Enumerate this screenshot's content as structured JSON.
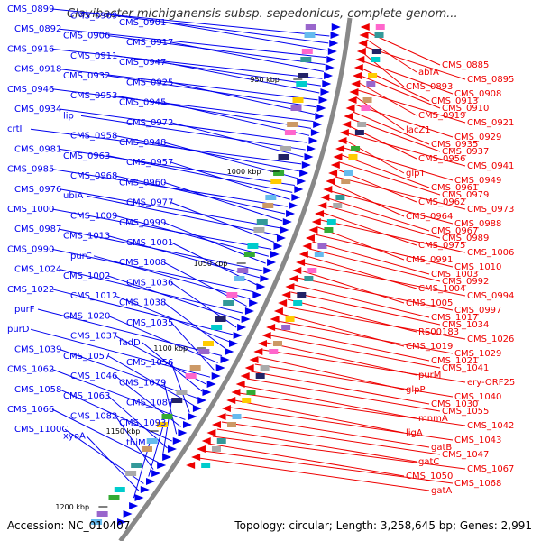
{
  "title": "Clavibacter michiganensis subsp. sepedonicus, complete genom...",
  "footer": {
    "accession": "Accession: NC_010407",
    "summary": "Topology: circular; Length: 3,258,645 bp; Genes: 2,991"
  },
  "colors": {
    "left_strand": "#0000ee",
    "right_strand": "#ee0000",
    "backbone": "#888888"
  },
  "ticks": [
    "950 kbp",
    "1000 kbp",
    "1050 kbp",
    "1100 kbp",
    "1150 kbp",
    "1200 kbp"
  ],
  "left_labels": [
    "CMS_0899",
    "CMS_0909",
    "CMS_0901",
    "CMS_0892",
    "CMS_0906",
    "CMS_0917",
    "CMS_0916",
    "CMS_0911",
    "CMS_0947",
    "CMS_0918",
    "CMS_0932",
    "CMS_0925",
    "CMS_0946",
    "CMS_0953",
    "CMS_0945",
    "CMS_0934",
    "lip",
    "CMS_0972",
    "crtI",
    "CMS_0958",
    "CMS_0948",
    "CMS_0981",
    "CMS_0963",
    "CMS_0957",
    "CMS_0985",
    "CMS_0968",
    "CMS_0960",
    "CMS_0976",
    "ubiA",
    "CMS_0977",
    "CMS_1000",
    "CMS_1009",
    "CMS_0999",
    "CMS_0987",
    "CMS_1013",
    "CMS_1001",
    "CMS_0990",
    "purC",
    "CMS_1008",
    "CMS_1024",
    "CMS_1002",
    "CMS_1036",
    "CMS_1022",
    "CMS_1012",
    "CMS_1038",
    "purF",
    "CMS_1020",
    "CMS_1035",
    "purD",
    "CMS_1037",
    "fadD",
    "CMS_1039",
    "CMS_1057",
    "CMS_1056",
    "CMS_1062",
    "CMS_1046",
    "CMS_1079",
    "CMS_1058",
    "CMS_1063",
    "CMS_1087",
    "CMS_1066",
    "CMS_1082",
    "CMS_1093",
    "CMS_1100C",
    "xyoA",
    "thiM"
  ],
  "right_labels": [
    "CMS_0885",
    "abfA",
    "CMS_0895",
    "CMS_0893",
    "CMS_0908",
    "CMS_0913",
    "CMS_0910",
    "CMS_0919",
    "CMS_0921",
    "lacZ1",
    "CMS_0929",
    "CMS_0935",
    "CMS_0937",
    "CMS_0956",
    "CMS_0941",
    "glpT",
    "CMS_0949",
    "CMS_0961",
    "CMS_0979",
    "CMS_0962",
    "CMS_0973",
    "CMS_0964",
    "CMS_0988",
    "CMS_0967",
    "CMS_0989",
    "CMS_0975",
    "CMS_1006",
    "CMS_0991",
    "CMS_1010",
    "CMS_1003",
    "CMS_0992",
    "CMS_1004",
    "CMS_0994",
    "CMS_1005",
    "CMS_0997",
    "CMS_1017",
    "CMS_1034",
    "RS00183",
    "CMS_1026",
    "CMS_1019",
    "CMS_1029",
    "CMS_1021",
    "CMS_1041",
    "purM",
    "ery-ORF25",
    "glpP",
    "CMS_1040",
    "CMS_1030",
    "CMS_1055",
    "mnmA",
    "CMS_1042",
    "ligA",
    "CMS_1043",
    "gatB",
    "CMS_1047",
    "gatC",
    "CMS_1067",
    "CMS_1050",
    "CMS_1068",
    "gatA"
  ]
}
